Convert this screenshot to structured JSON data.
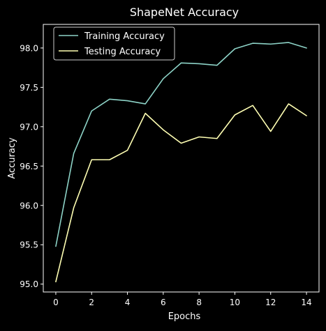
{
  "chart_data": {
    "type": "line",
    "title": "ShapeNet Accuracy",
    "xlabel": "Epochs",
    "ylabel": "Accuracy",
    "xlim": [
      -0.7,
      14.7
    ],
    "ylim": [
      94.9,
      98.3
    ],
    "xticks": [
      0,
      2,
      4,
      6,
      8,
      10,
      12,
      14
    ],
    "xtick_labels": [
      "0",
      "2",
      "4",
      "6",
      "8",
      "10",
      "12",
      "14"
    ],
    "yticks": [
      95.0,
      95.5,
      96.0,
      96.5,
      97.0,
      97.5,
      98.0
    ],
    "ytick_labels": [
      "95.0",
      "95.5",
      "96.0",
      "96.5",
      "97.0",
      "97.5",
      "98.0"
    ],
    "grid": false,
    "legend_position": "top-left",
    "x": [
      0,
      1,
      2,
      3,
      4,
      5,
      6,
      7,
      8,
      9,
      10,
      11,
      12,
      13,
      14
    ],
    "series": [
      {
        "name": "Training Accuracy",
        "color": "#8dd3c7",
        "values": [
          95.48,
          96.66,
          97.2,
          97.35,
          97.33,
          97.29,
          97.61,
          97.81,
          97.8,
          97.78,
          97.99,
          98.06,
          98.05,
          98.07,
          98.0
        ]
      },
      {
        "name": "Testing Accuracy",
        "color": "#ffffb3",
        "values": [
          95.03,
          95.97,
          96.58,
          96.58,
          96.7,
          97.17,
          96.96,
          96.79,
          96.87,
          96.85,
          97.15,
          97.27,
          96.94,
          97.29,
          97.14
        ]
      }
    ],
    "background_color": "#000000",
    "foreground_color": "#ffffff"
  }
}
